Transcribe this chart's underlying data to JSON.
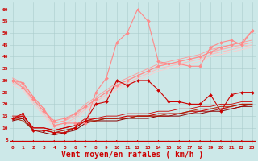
{
  "background_color": "#cce8e8",
  "grid_color": "#aacccc",
  "xlabel": "Vent moyen/en rafales ( km/h )",
  "xlabel_color": "#cc0000",
  "xlabel_fontsize": 7,
  "xtick_color": "#cc0000",
  "ytick_color": "#cc0000",
  "ytick_labels": [
    5,
    10,
    15,
    20,
    25,
    30,
    35,
    40,
    45,
    50,
    55,
    60
  ],
  "xlim": [
    -0.3,
    23.3
  ],
  "ylim": [
    3,
    63
  ],
  "x": [
    0,
    1,
    2,
    3,
    4,
    5,
    6,
    7,
    8,
    9,
    10,
    11,
    12,
    13,
    14,
    15,
    16,
    17,
    18,
    19,
    20,
    21,
    22,
    23
  ],
  "lines": [
    {
      "y": [
        14,
        16,
        9,
        9,
        8,
        8,
        10,
        13,
        20,
        21,
        30,
        28,
        30,
        30,
        26,
        21,
        21,
        20,
        20,
        24,
        17,
        24,
        25,
        25
      ],
      "color": "#cc0000",
      "lw": 0.8,
      "marker": "D",
      "ms": 2.0,
      "zorder": 5
    },
    {
      "y": [
        14,
        15,
        10,
        10,
        9,
        10,
        11,
        13,
        14,
        14,
        14,
        15,
        15,
        15,
        16,
        16,
        16,
        17,
        17,
        18,
        18,
        19,
        20,
        20
      ],
      "color": "#cc0000",
      "lw": 0.8,
      "marker": null,
      "ms": 0,
      "zorder": 3
    },
    {
      "y": [
        13,
        14,
        9,
        8,
        7,
        8,
        9,
        12,
        13,
        13,
        13,
        14,
        14,
        14,
        15,
        15,
        15,
        16,
        16,
        17,
        17,
        18,
        19,
        19
      ],
      "color": "#880000",
      "lw": 0.7,
      "marker": null,
      "ms": 0,
      "zorder": 3
    },
    {
      "y": [
        14,
        14,
        9,
        9,
        8,
        9,
        10,
        13,
        13,
        14,
        14,
        14,
        15,
        15,
        15,
        15,
        16,
        16,
        17,
        17,
        18,
        18,
        19,
        20
      ],
      "color": "#aa0000",
      "lw": 0.6,
      "marker": null,
      "ms": 0,
      "zorder": 3
    },
    {
      "y": [
        15,
        15,
        10,
        10,
        9,
        10,
        11,
        14,
        14,
        15,
        15,
        16,
        16,
        16,
        17,
        17,
        18,
        18,
        19,
        19,
        20,
        20,
        21,
        21
      ],
      "color": "#cc0000",
      "lw": 0.6,
      "marker": null,
      "ms": 0,
      "zorder": 3
    },
    {
      "y": [
        14,
        13,
        9,
        9,
        9,
        9,
        10,
        13,
        13,
        14,
        14,
        14,
        15,
        15,
        15,
        16,
        16,
        17,
        18,
        18,
        19,
        19,
        20,
        20
      ],
      "color": "#aa2200",
      "lw": 0.6,
      "marker": null,
      "ms": 0,
      "zorder": 3
    },
    {
      "y": [
        30,
        29,
        23,
        18,
        11,
        12,
        12,
        12,
        25,
        31,
        46,
        50,
        60,
        55,
        38,
        37,
        37,
        36,
        36,
        44,
        46,
        47,
        45,
        51
      ],
      "color": "#ff8888",
      "lw": 0.8,
      "marker": "D",
      "ms": 2.0,
      "zorder": 4
    },
    {
      "y": [
        30,
        28,
        22,
        17,
        12,
        13,
        15,
        19,
        22,
        25,
        28,
        30,
        32,
        34,
        36,
        37,
        38,
        39,
        40,
        42,
        43,
        44,
        45,
        46
      ],
      "color": "#ffaaaa",
      "lw": 0.8,
      "marker": null,
      "ms": 0,
      "zorder": 2
    },
    {
      "y": [
        29,
        27,
        21,
        16,
        11,
        12,
        14,
        18,
        21,
        24,
        27,
        29,
        31,
        33,
        35,
        36,
        37,
        38,
        39,
        41,
        42,
        43,
        44,
        45
      ],
      "color": "#ffbbbb",
      "lw": 0.7,
      "marker": null,
      "ms": 0,
      "zorder": 2
    },
    {
      "y": [
        31,
        29,
        23,
        18,
        12,
        13,
        16,
        20,
        23,
        26,
        29,
        31,
        33,
        35,
        37,
        38,
        39,
        40,
        41,
        43,
        44,
        45,
        46,
        47
      ],
      "color": "#ff9999",
      "lw": 0.6,
      "marker": null,
      "ms": 0,
      "zorder": 2
    },
    {
      "y": [
        28,
        26,
        20,
        15,
        10,
        11,
        13,
        17,
        20,
        23,
        26,
        28,
        30,
        32,
        34,
        35,
        36,
        37,
        38,
        40,
        41,
        42,
        43,
        44
      ],
      "color": "#ffcccc",
      "lw": 0.6,
      "marker": null,
      "ms": 0,
      "zorder": 2
    },
    {
      "y": [
        30,
        27,
        22,
        17,
        13,
        14,
        16,
        19,
        22,
        25,
        28,
        30,
        32,
        34,
        36,
        37,
        38,
        39,
        40,
        42,
        44,
        45,
        46,
        51
      ],
      "color": "#ff8888",
      "lw": 0.7,
      "marker": "D",
      "ms": 2.0,
      "zorder": 4
    }
  ],
  "arrow_color": "#cc0000",
  "red_hline_y": 4.5
}
